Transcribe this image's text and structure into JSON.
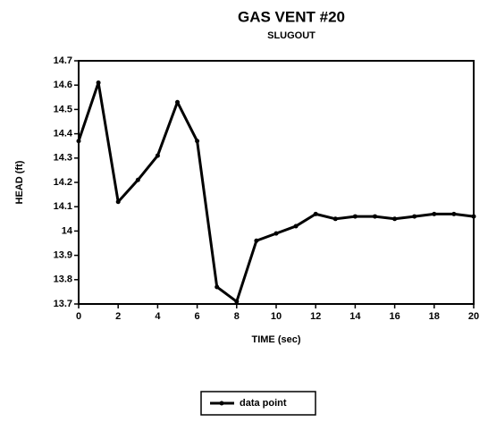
{
  "chart_data": {
    "type": "line",
    "title": "GAS VENT #20",
    "subtitle": "SLUGOUT",
    "x_label": "TIME (sec)",
    "y_label": "HEAD (ft)",
    "x": [
      0,
      1,
      2,
      3,
      4,
      5,
      6,
      7,
      8,
      9,
      10,
      11,
      12,
      13,
      14,
      15,
      16,
      17,
      18,
      19,
      20
    ],
    "series": [
      {
        "name": "data point",
        "color": "#000000",
        "values": [
          14.37,
          14.61,
          14.12,
          14.21,
          14.31,
          14.53,
          14.37,
          13.77,
          13.71,
          13.96,
          13.99,
          14.02,
          14.07,
          14.05,
          14.06,
          14.06,
          14.05,
          14.06,
          14.07,
          14.07,
          14.06
        ]
      }
    ],
    "xlim": [
      0,
      20
    ],
    "xticks": [
      0,
      2,
      4,
      6,
      8,
      10,
      12,
      14,
      16,
      18,
      20
    ],
    "ylim": [
      13.7,
      14.7
    ],
    "yticks": [
      13.7,
      13.8,
      13.9,
      14,
      14.1,
      14.2,
      14.3,
      14.4,
      14.5,
      14.6,
      14.7
    ],
    "grid": false,
    "legend": "bottom"
  }
}
